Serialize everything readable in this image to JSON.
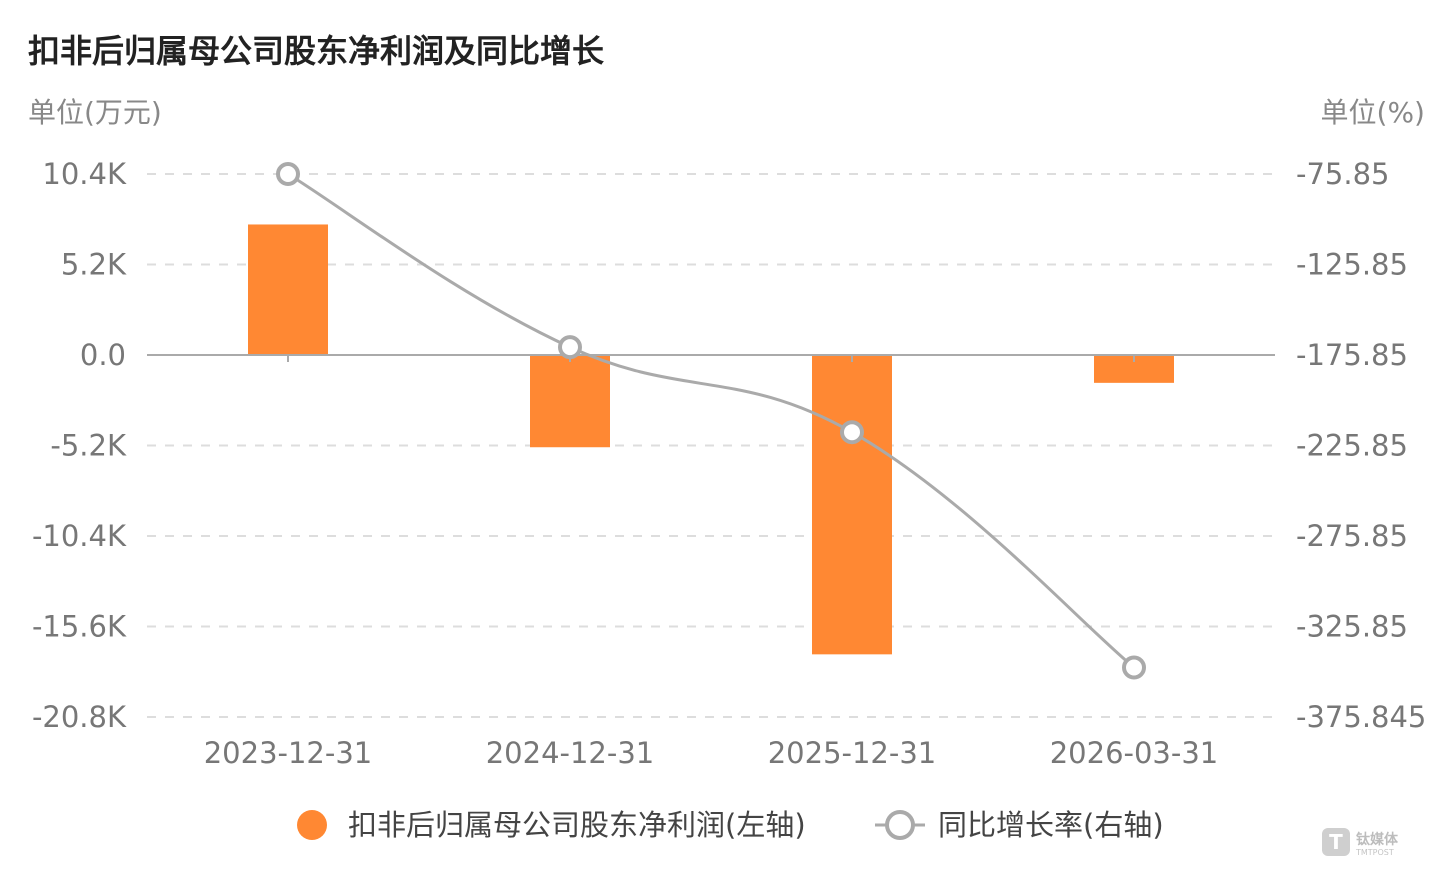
{
  "chart_data": {
    "type": "bar",
    "title": "扣非后归属母公司股东净利润及同比增长",
    "left_unit": "单位(万元)",
    "right_unit": "单位(%)",
    "categories": [
      "2023-12-31",
      "2024-12-31",
      "2025-12-31",
      "2026-03-31"
    ],
    "left_axis": {
      "ticks": [
        "10.4K",
        "5.2K",
        "0.0",
        "-5.2K",
        "-10.4K",
        "-15.6K",
        "-20.8K"
      ],
      "tick_values": [
        10400,
        5200,
        0,
        -5200,
        -10400,
        -15600,
        -20800
      ],
      "range": [
        -20800,
        10400
      ]
    },
    "right_axis": {
      "ticks": [
        "-75.85",
        "-125.85",
        "-175.85",
        "-225.85",
        "-275.85",
        "-325.85",
        "-375.845"
      ],
      "tick_values": [
        -75.85,
        -125.85,
        -175.85,
        -225.85,
        -275.85,
        -325.85,
        -375.845
      ],
      "range": [
        -375.845,
        -75.85
      ]
    },
    "series": [
      {
        "name": "扣非后归属母公司股东净利润(左轴)",
        "type": "bar",
        "axis": "left",
        "color": "#FF8833",
        "values": [
          7500,
          -5300,
          -17200,
          -1600
        ]
      },
      {
        "name": "同比增长率(右轴)",
        "type": "line",
        "axis": "right",
        "color": "#AAAAAA",
        "values": [
          -75.85,
          -171.5,
          -218.5,
          -348.5
        ]
      }
    ],
    "grid": true,
    "legend_position": "bottom-center"
  },
  "watermark": {
    "icon": "tmtpost-logo-icon",
    "text_cn": "钛媒体",
    "text_en": "TMTPOST"
  }
}
